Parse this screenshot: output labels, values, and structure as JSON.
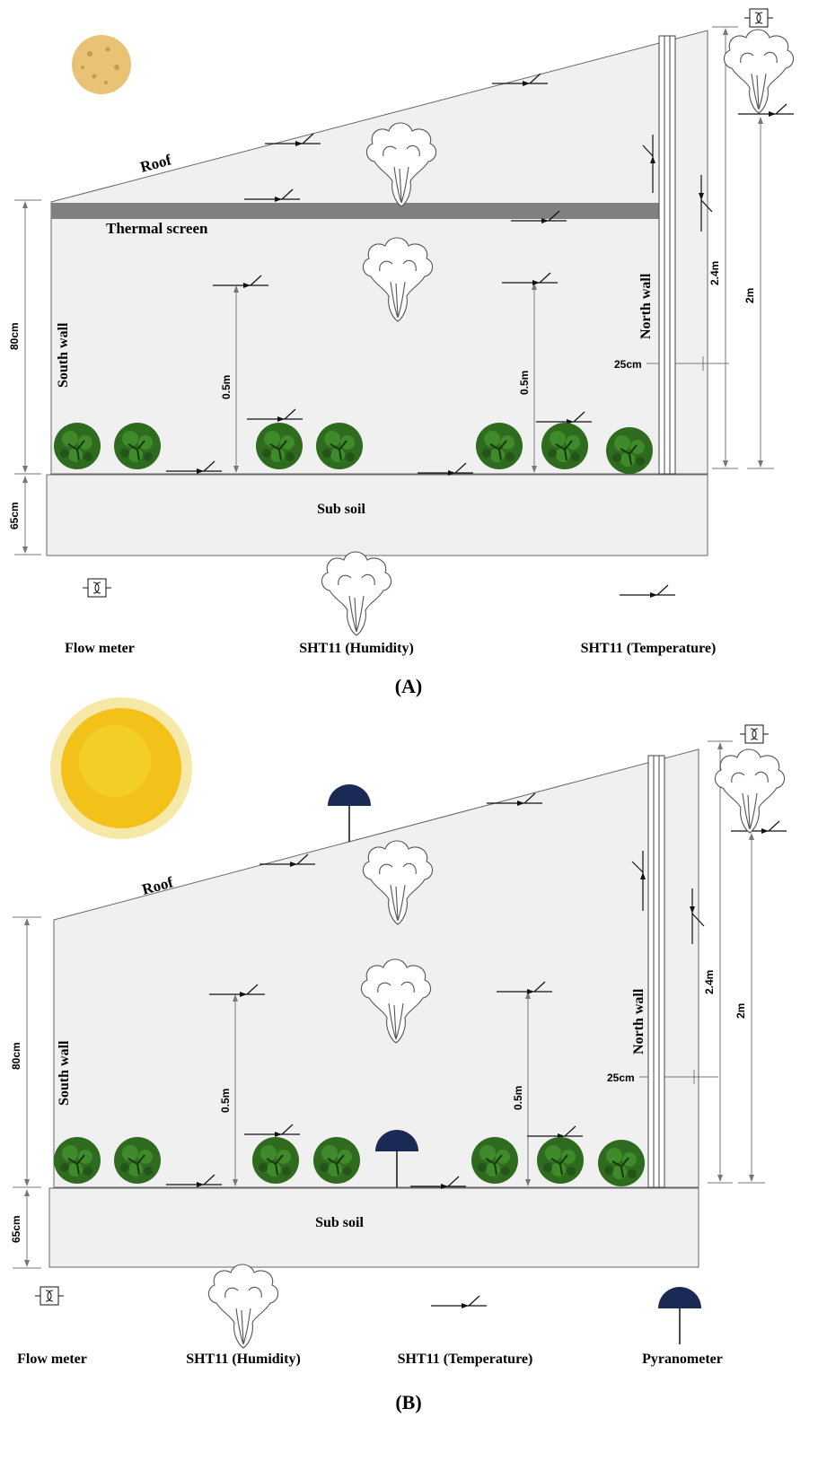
{
  "panels": [
    {
      "id": "A",
      "caption": "(A)",
      "labels": {
        "roof": "Roof",
        "thermal_screen": "Thermal screen",
        "south_wall": "South wall",
        "north_wall": "North wall",
        "sub_soil": "Sub soil"
      },
      "dimensions": {
        "height_80": "80cm",
        "height_65": "65cm",
        "sensor_height_left": "0.5m",
        "sensor_height_right": "0.5m",
        "wall_25": "25cm",
        "height_2_4": "2.4m",
        "height_2": "2m"
      },
      "legend": {
        "flow_meter": "Flow meter",
        "humidity": "SHT11 (Humidity)",
        "temperature": "SHT11 (Temperature)"
      }
    },
    {
      "id": "B",
      "caption": "(B)",
      "labels": {
        "roof": "Roof",
        "south_wall": "South wall",
        "north_wall": "North wall",
        "sub_soil": "Sub soil"
      },
      "dimensions": {
        "height_80": "80cm",
        "height_65": "65cm",
        "sensor_height_left": "0.5m",
        "sensor_height_right": "0.5m",
        "wall_25": "25cm",
        "height_2_4": "2.4m",
        "height_2": "2m"
      },
      "legend": {
        "flow_meter": "Flow meter",
        "humidity": "SHT11 (Humidity)",
        "temperature": "SHT11 (Temperature)",
        "pyranometer": "Pyranometer"
      }
    }
  ],
  "colors": {
    "sun_a": "#e8c375",
    "sun_b": "#f2c21a",
    "plant": "#2e6b1f",
    "pyranometer": "#1b2a55",
    "thermal_screen": "#808080"
  }
}
